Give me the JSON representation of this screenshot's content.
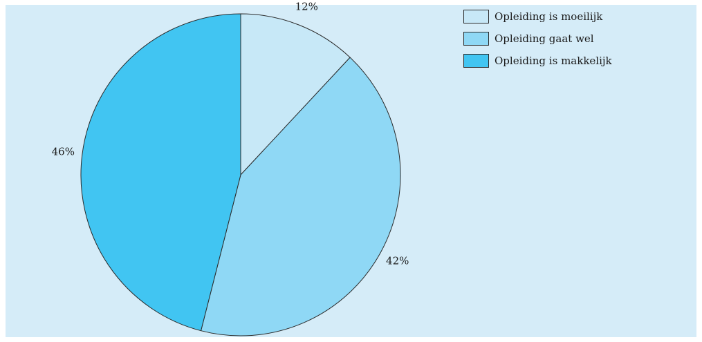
{
  "chart_data": {
    "type": "pie",
    "title": "",
    "slices": [
      {
        "label": "Opleiding is moeilijk",
        "value": 12,
        "value_label": "12%",
        "color": "#c7e8f7"
      },
      {
        "label": "Opleiding gaat wel",
        "value": 42,
        "value_label": "42%",
        "color": "#8fd8f5"
      },
      {
        "label": "Opleiding is makkelijk",
        "value": 46,
        "value_label": "46%",
        "color": "#41c5f2"
      }
    ],
    "legend_position": "top-right",
    "start_angle": "12 o'clock",
    "direction": "clockwise"
  },
  "colors": {
    "background": "#d5ecf8",
    "outline": "#2a2a2a"
  }
}
